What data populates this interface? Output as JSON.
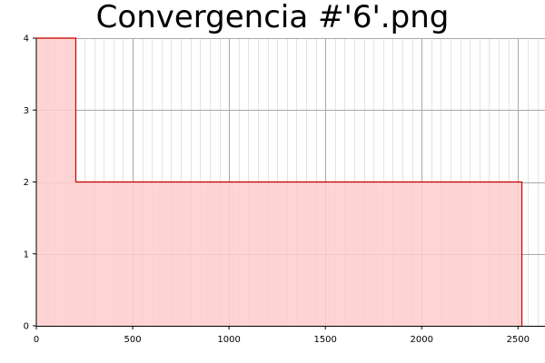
{
  "chart_data": {
    "type": "area",
    "title": "Convergencia #'6'.png",
    "xlabel": "",
    "ylabel": "",
    "xlim": [
      0,
      2640
    ],
    "ylim": [
      0,
      4
    ],
    "x_ticks": [
      "0",
      "500",
      "1000",
      "1500",
      "2000",
      "2500"
    ],
    "x_tick_values": [
      0,
      500,
      1000,
      1500,
      2000,
      2500
    ],
    "y_ticks": [
      "0",
      "1",
      "2",
      "3",
      "4"
    ],
    "y_tick_values": [
      0,
      1,
      2,
      3,
      4
    ],
    "grid": true,
    "legend": "none",
    "series": [
      {
        "step": "post",
        "x": [
          0,
          205,
          2520
        ],
        "y": [
          4,
          2,
          0
        ],
        "fill_color": "#ffcccc",
        "line_color": "#cc0000"
      }
    ]
  }
}
